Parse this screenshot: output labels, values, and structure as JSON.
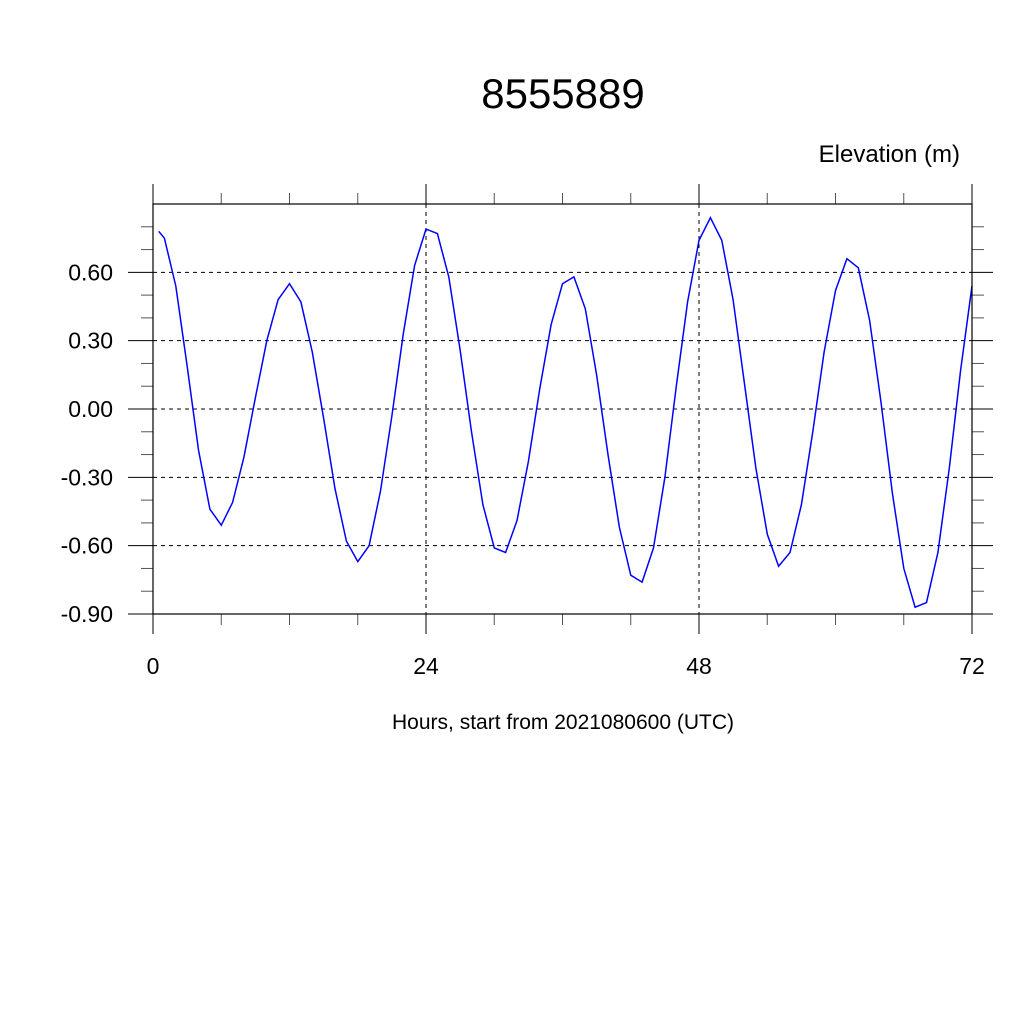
{
  "chart_data": {
    "type": "line",
    "title": "8555889",
    "subtitle": "Elevation (m)",
    "xlabel": "Hours, start from 2021080600 (UTC)",
    "ylabel": "",
    "xlim": [
      0,
      72
    ],
    "ylim": [
      -0.9,
      0.9
    ],
    "x_ticks": [
      0,
      24,
      48,
      72
    ],
    "x_tick_labels": [
      "0",
      "24",
      "48",
      "72"
    ],
    "x_minor_step": 6,
    "y_ticks": [
      0.6,
      0.3,
      0.0,
      -0.3,
      -0.6,
      -0.9
    ],
    "y_tick_labels": [
      "0.60",
      "0.30",
      "0.00",
      "-0.30",
      "-0.60",
      "-0.90"
    ],
    "y_minor_step": 0.1,
    "grid": "dashed at major ticks",
    "line_color": "#0000ff",
    "series": [
      {
        "x": [
          0.5,
          1,
          2,
          3,
          4,
          5,
          6,
          7,
          8,
          9,
          10,
          11,
          12,
          13,
          14,
          15,
          16,
          17,
          18,
          19,
          20,
          21,
          22,
          23,
          24,
          25,
          26,
          27,
          28,
          29,
          30,
          31,
          32,
          33,
          34,
          35,
          36,
          37,
          38,
          39,
          40,
          41,
          42,
          43,
          44,
          45,
          46,
          47,
          48,
          49,
          50,
          51,
          52,
          53,
          54,
          55,
          56,
          57,
          58,
          59,
          60,
          61,
          62,
          63,
          64,
          65,
          66,
          67,
          68,
          69,
          70,
          71,
          72
        ],
        "y": [
          0.78,
          0.75,
          0.54,
          0.19,
          -0.18,
          -0.44,
          -0.51,
          -0.41,
          -0.21,
          0.05,
          0.3,
          0.48,
          0.55,
          0.47,
          0.25,
          -0.04,
          -0.35,
          -0.58,
          -0.67,
          -0.6,
          -0.36,
          -0.03,
          0.33,
          0.63,
          0.79,
          0.77,
          0.58,
          0.26,
          -0.1,
          -0.42,
          -0.61,
          -0.63,
          -0.49,
          -0.23,
          0.09,
          0.37,
          0.55,
          0.58,
          0.44,
          0.15,
          -0.2,
          -0.52,
          -0.73,
          -0.76,
          -0.61,
          -0.3,
          0.1,
          0.47,
          0.74,
          0.84,
          0.74,
          0.48,
          0.11,
          -0.26,
          -0.55,
          -0.69,
          -0.63,
          -0.42,
          -0.1,
          0.25,
          0.52,
          0.66,
          0.62,
          0.39,
          0.03,
          -0.37,
          -0.7,
          -0.87,
          -0.85,
          -0.63,
          -0.26,
          0.17,
          0.54
        ]
      }
    ]
  }
}
